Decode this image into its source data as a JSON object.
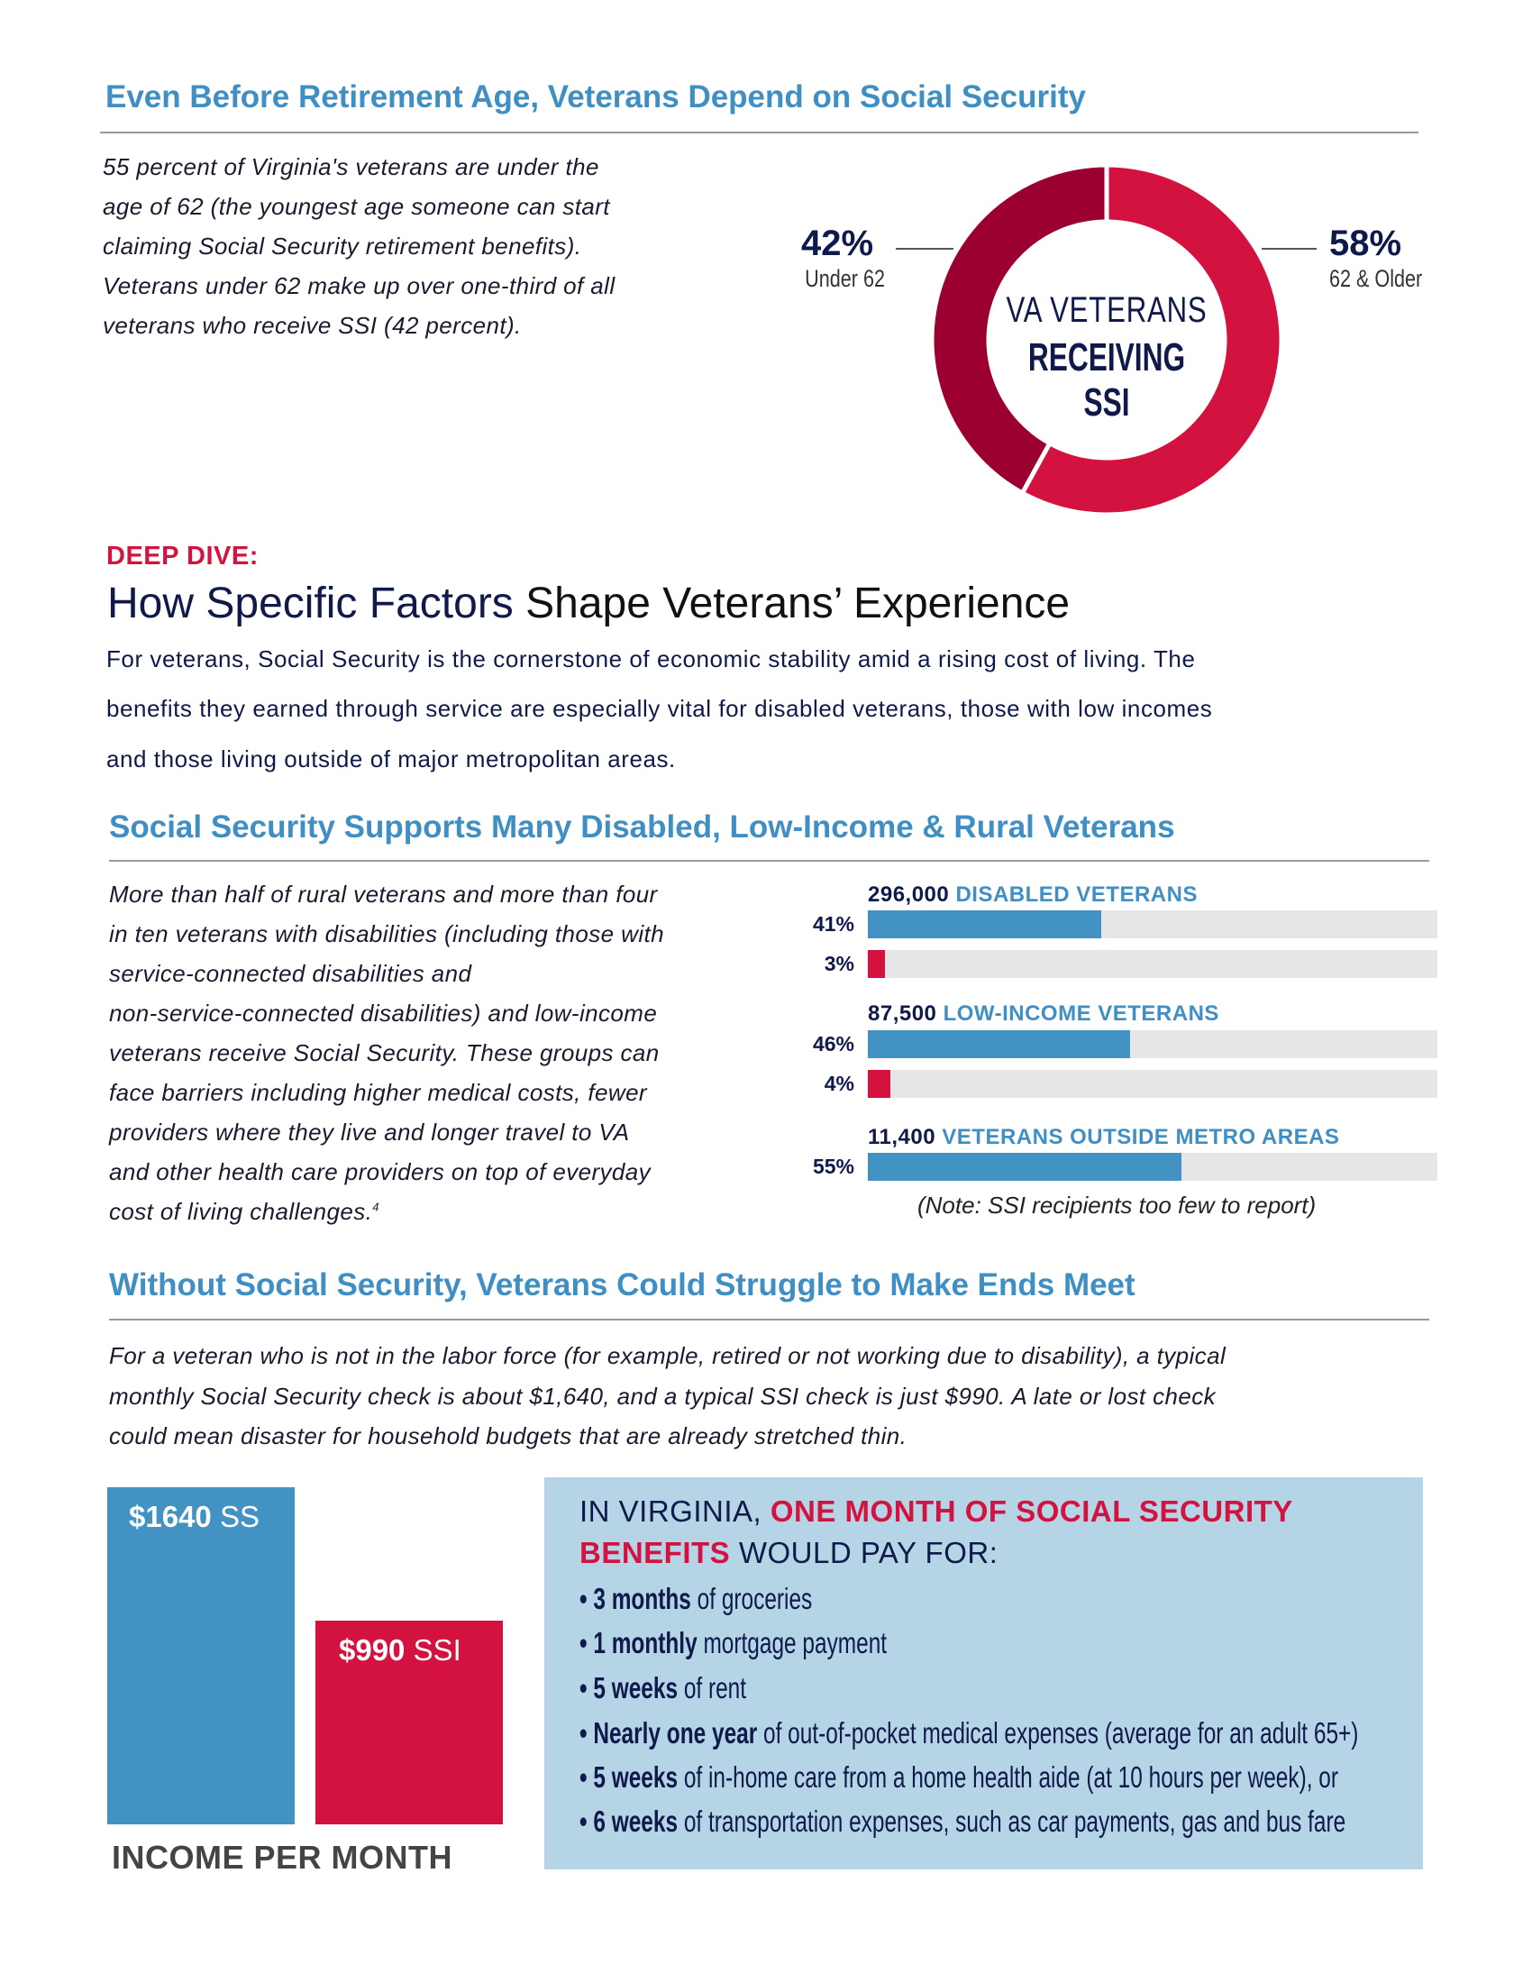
{
  "section1": {
    "title": "Even Before Retirement Age, Veterans Depend on Social Security",
    "lines": [
      "55 percent of Virginia's veterans are under the",
      "age of 62 (the youngest age someone can start",
      "claiming Social Security retirement benefits).",
      "Veterans under 62 make up over one-third of all",
      "veterans who receive SSI (42 percent)."
    ]
  },
  "chart_data": [
    {
      "type": "pie",
      "title": "VA VETERANS RECEIVING SSI",
      "title_line1": "VA VETERANS",
      "title_line2": "RECEIVING SSI",
      "slices": [
        {
          "label": "Under 62",
          "value": 42,
          "display": "42%",
          "color": "#9b0030"
        },
        {
          "label": "62 & Older",
          "value": 58,
          "display": "58%",
          "color": "#d3123f"
        }
      ]
    },
    {
      "type": "bar",
      "orientation": "horizontal",
      "xlim": [
        0,
        100
      ],
      "groups": [
        {
          "count": "296,000",
          "label": "DISABLED VETERANS",
          "bars": [
            {
              "value": 41,
              "display": "41%",
              "color": "#4392c4"
            },
            {
              "value": 3,
              "display": "3%",
              "color": "#d3123f"
            }
          ]
        },
        {
          "count": "87,500",
          "label": "LOW-INCOME VETERANS",
          "bars": [
            {
              "value": 46,
              "display": "46%",
              "color": "#4392c4"
            },
            {
              "value": 4,
              "display": "4%",
              "color": "#d3123f"
            }
          ]
        },
        {
          "count": "11,400",
          "label": "VETERANS OUTSIDE METRO AREAS",
          "bars": [
            {
              "value": 55,
              "display": "55%",
              "color": "#4392c4"
            }
          ]
        }
      ],
      "note": "(Note: SSI recipients too few to report)"
    },
    {
      "type": "bar",
      "categories": [
        "SS",
        "SSI"
      ],
      "values": [
        1640,
        990
      ],
      "labels": [
        {
          "amount": "$1640",
          "name": "SS"
        },
        {
          "amount": "$990",
          "name": "SSI"
        }
      ],
      "colors": [
        "#4392c4",
        "#d3123f"
      ],
      "xlabel": "INCOME PER MONTH"
    }
  ],
  "deep_dive": {
    "kicker": "DEEP DIVE:",
    "heading_part1": "How Specific Factors",
    "heading_part2": " Shape Veterans’ Experience",
    "lines": [
      "For veterans, Social Security is the cornerstone of economic stability amid a rising cost of living. The",
      "benefits they earned through service are especially vital for disabled veterans, those with low incomes",
      "and those living outside of major metropolitan areas."
    ]
  },
  "section2": {
    "title": "Social Security Supports Many Disabled, Low-Income & Rural Veterans",
    "lines": [
      "More than half of rural veterans and more than four",
      "in ten veterans with disabilities (including those with",
      "service-connected disabilities and",
      "non-service-connected disabilities) and low-income",
      "veterans receive Social Security. These groups can",
      "face barriers including higher medical costs, fewer",
      "providers where they live and longer travel to VA",
      "and other health care providers on top of everyday",
      "cost of living challenges."
    ],
    "footnote": "4"
  },
  "section3": {
    "title": "Without Social Security, Veterans Could Struggle to Make Ends Meet",
    "lines": [
      "For a veteran who is not in the labor force (for example, retired or not working due to disability), a typical",
      "monthly Social Security check is about $1,640, and a typical SSI check is just $990. A late or lost check",
      "could mean disaster for household budgets that are already stretched thin."
    ]
  },
  "callout": {
    "heading_a": "IN VIRGINIA, ",
    "heading_b": "ONE MONTH OF SOCIAL SECURITY",
    "heading_c": "BENEFITS",
    "heading_d": " WOULD PAY FOR:",
    "items": [
      {
        "bold": "3 months",
        "rest": " of groceries"
      },
      {
        "bold": "1 monthly",
        "rest": " mortgage payment"
      },
      {
        "bold": "5 weeks",
        "rest": " of rent"
      },
      {
        "bold": "Nearly one year",
        "rest": " of out-of-pocket medical expenses (average for an adult 65+)"
      },
      {
        "bold": "5 weeks",
        "rest": " of in-home care from a home health aide (at 10 hours per week), or"
      },
      {
        "bold": "6 weeks",
        "rest": " of transportation expenses, such as car payments, gas and bus fare"
      }
    ],
    "bullet": "•",
    "background": "#b5d4e6"
  }
}
